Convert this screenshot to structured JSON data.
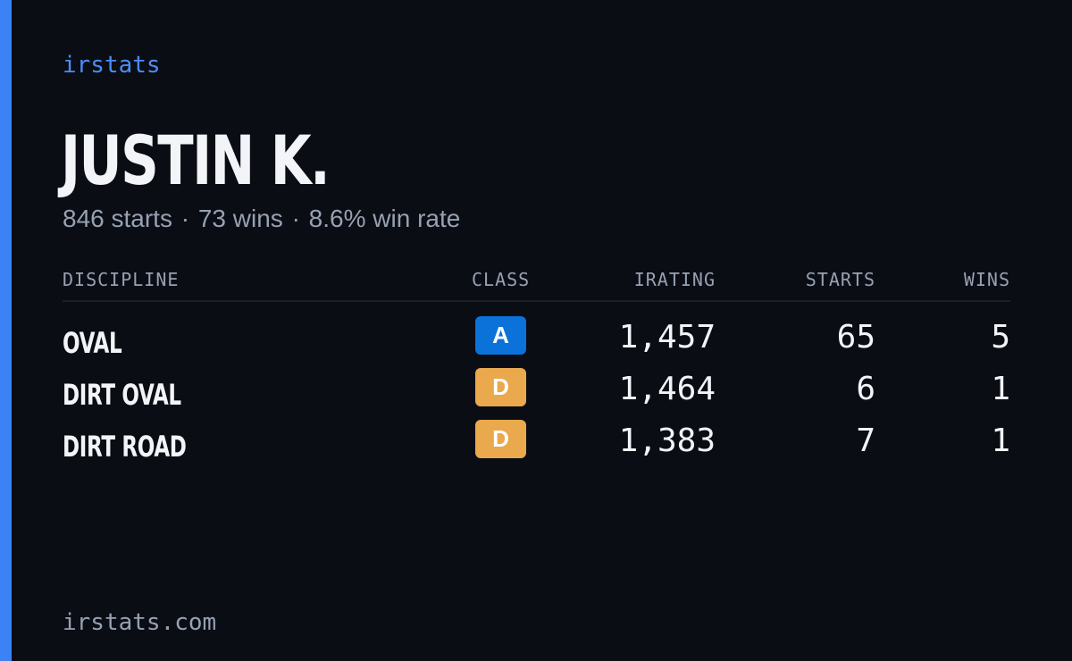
{
  "brand": "irstats",
  "driver": {
    "name": "JUSTIN K.",
    "summary_starts": "846 starts",
    "summary_wins": "73 wins",
    "summary_winrate": "8.6% win rate",
    "separator": "·"
  },
  "table": {
    "headers": {
      "discipline": "DISCIPLINE",
      "class": "CLASS",
      "irating": "IRATING",
      "starts": "STARTS",
      "wins": "WINS"
    },
    "rows": [
      {
        "discipline": "OVAL",
        "class": "A",
        "class_color": "#0b72d9",
        "irating": "1,457",
        "starts": "65",
        "wins": "5"
      },
      {
        "discipline": "DIRT OVAL",
        "class": "D",
        "class_color": "#e9a94c",
        "irating": "1,464",
        "starts": "6",
        "wins": "1"
      },
      {
        "discipline": "DIRT ROAD",
        "class": "D",
        "class_color": "#e9a94c",
        "irating": "1,383",
        "starts": "7",
        "wins": "1"
      }
    ]
  },
  "footer": {
    "url": "irstats.com"
  },
  "colors": {
    "background": "#0a0d14",
    "accent": "#3b82f6",
    "brand": "#4b8df8",
    "muted_text": "#97a1b2",
    "primary_text": "#f2f4f8"
  }
}
